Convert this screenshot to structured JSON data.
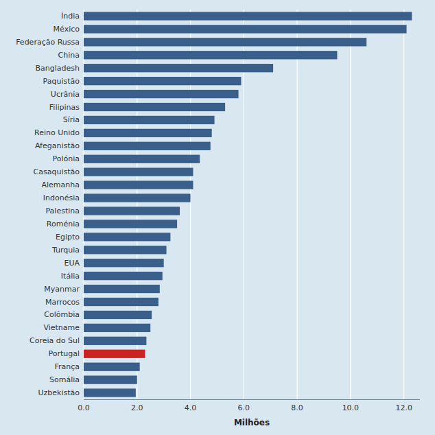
{
  "chart_data": {
    "type": "bar",
    "orientation": "horizontal",
    "categories": [
      "Índia",
      "México",
      "Federação Russa",
      "China",
      "Bangladesh",
      "Paquistão",
      "Ucrânia",
      "Filipinas",
      "Síria",
      "Reino Unido",
      "Afeganistão",
      "Polónia",
      "Casaquistão",
      "Alemanha",
      "Indonésia",
      "Palestina",
      "Roménia",
      "Egipto",
      "Turquia",
      "EUA",
      "Itália",
      "Myanmar",
      "Marrocos",
      "Colômbia",
      "Vietname",
      "Coreia do Sul",
      "Portugal",
      "França",
      "Somália",
      "Uzbekistão"
    ],
    "values": [
      12.3,
      12.1,
      10.6,
      9.5,
      7.1,
      5.9,
      5.8,
      5.3,
      4.9,
      4.8,
      4.75,
      4.35,
      4.1,
      4.1,
      4.0,
      3.6,
      3.5,
      3.25,
      3.1,
      3.0,
      2.95,
      2.85,
      2.8,
      2.55,
      2.5,
      2.35,
      2.3,
      2.1,
      2.0,
      1.95
    ],
    "colors": [
      "#3a5f8a",
      "#3a5f8a",
      "#3a5f8a",
      "#3a5f8a",
      "#3a5f8a",
      "#3a5f8a",
      "#3a5f8a",
      "#3a5f8a",
      "#3a5f8a",
      "#3a5f8a",
      "#3a5f8a",
      "#3a5f8a",
      "#3a5f8a",
      "#3a5f8a",
      "#3a5f8a",
      "#3a5f8a",
      "#3a5f8a",
      "#3a5f8a",
      "#3a5f8a",
      "#3a5f8a",
      "#3a5f8a",
      "#3a5f8a",
      "#3a5f8a",
      "#3a5f8a",
      "#3a5f8a",
      "#3a5f8a",
      "#cc2222",
      "#3a5f8a",
      "#3a5f8a",
      "#3a5f8a"
    ],
    "xlabel": "Milhões",
    "xlim": [
      0,
      12.6
    ],
    "xticks": [
      {
        "value": 0.0,
        "label": "0.0"
      },
      {
        "value": 2.0,
        "label": "2.0"
      },
      {
        "value": 4.0,
        "label": "4.0"
      },
      {
        "value": 6.0,
        "label": "6.0"
      },
      {
        "value": 8.0,
        "label": "8.0"
      },
      {
        "value": 10.0,
        "label": "10.0"
      },
      {
        "value": 12.0,
        "label": "12.0"
      }
    ],
    "grid": true
  }
}
